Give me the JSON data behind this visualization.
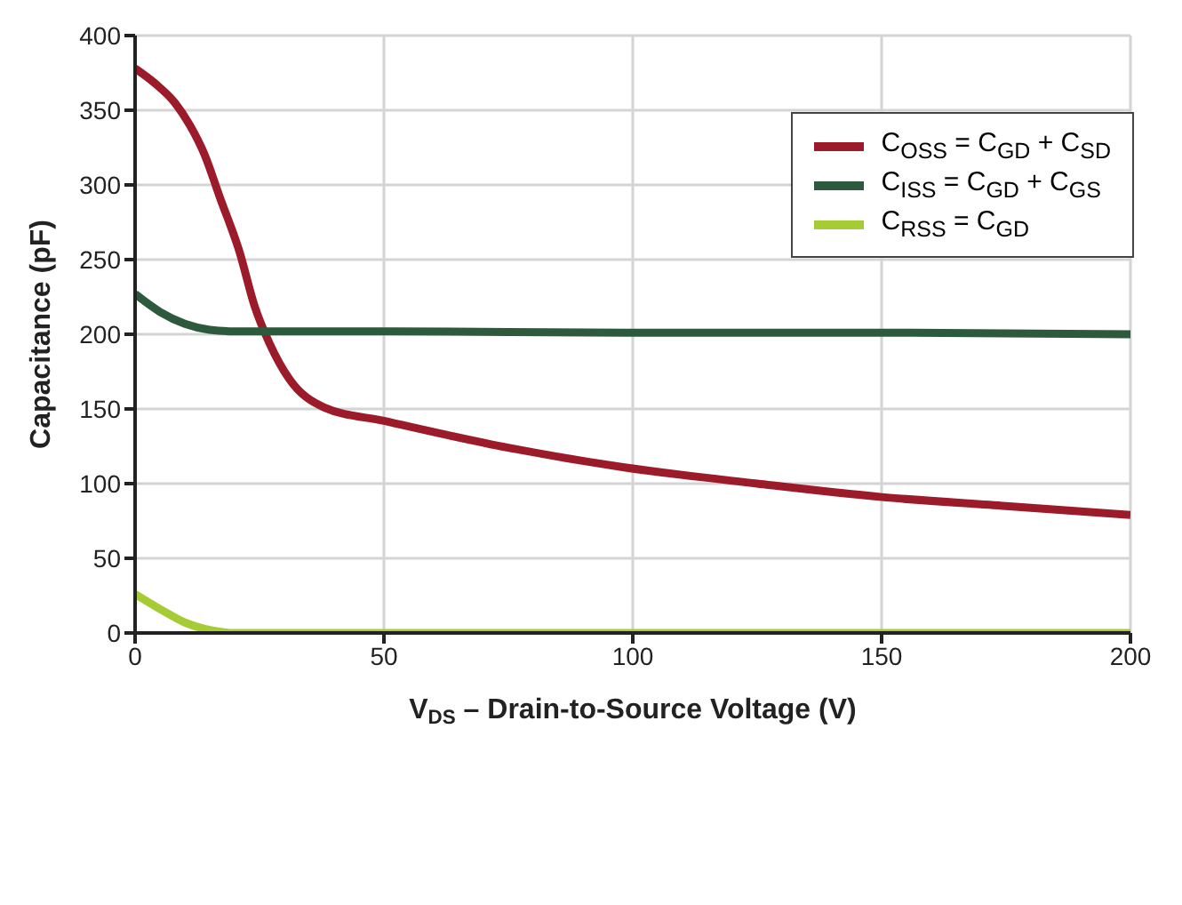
{
  "chart_data": {
    "type": "line",
    "xlabel": "V$_{DS}$ – Drain-to-Source Voltage (V)",
    "ylabel": "Capacitance (pF)",
    "xlim": [
      0,
      200
    ],
    "xticks": [
      0,
      50,
      100,
      150,
      200
    ],
    "ylim": [
      0,
      400
    ],
    "yticks": [
      0,
      50,
      100,
      150,
      200,
      250,
      300,
      350,
      400
    ],
    "grid": true,
    "legend": "top right",
    "marker": "none",
    "line_style": "solid",
    "series": [
      {
        "name": "C$_{OSS}$ = C$_{GD}$ + C$_{SD}$",
        "color": "#9b1b2a",
        "x": [
          0,
          4,
          8,
          11,
          14,
          17,
          21,
          24,
          27,
          31,
          38,
          50,
          75,
          98,
          125,
          150,
          175,
          200
        ],
        "values": [
          378,
          368,
          355,
          340,
          320,
          292,
          255,
          219,
          194,
          170,
          151,
          142,
          124,
          111,
          100,
          91,
          85,
          79
        ]
      },
      {
        "name": "C$_{ISS}$ = C$_{GD}$ + C$_{GS}$",
        "color": "#2d5a3d",
        "x": [
          0,
          5,
          10,
          15,
          20,
          25,
          50,
          100,
          150,
          200
        ],
        "values": [
          227,
          215,
          207,
          203,
          202,
          202,
          202,
          201,
          201,
          200
        ]
      },
      {
        "name": "C$_{RSS}$ = C$_{GD}$",
        "color": "#a5cc35",
        "x": [
          0,
          5,
          10,
          15,
          20,
          25,
          50,
          100,
          150,
          200
        ],
        "values": [
          26,
          16,
          7,
          2,
          0,
          0,
          0,
          0,
          0,
          0
        ]
      }
    ]
  }
}
